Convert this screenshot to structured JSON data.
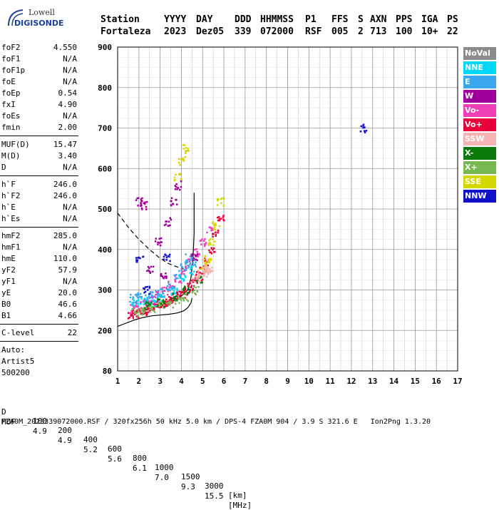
{
  "logo": {
    "company": "Lowell",
    "product": "DIGISONDE"
  },
  "header": {
    "labels": [
      "Station",
      "YYYY",
      "DAY",
      "DDD",
      "HHMMSS",
      "P1",
      "FFS",
      "S",
      "AXN",
      "PPS",
      "IGA",
      "PS"
    ],
    "values": [
      "Fortaleza",
      "2023",
      "Dez05",
      "339",
      "072000",
      "RSF",
      "005",
      "2",
      "713",
      "100",
      "10+",
      "22"
    ]
  },
  "parameters": {
    "group1": [
      {
        "label": "foF2",
        "value": "4.550"
      },
      {
        "label": "foF1",
        "value": "N/A"
      },
      {
        "label": "foF1p",
        "value": "N/A"
      },
      {
        "label": "foE",
        "value": "N/A"
      },
      {
        "label": "foEp",
        "value": "0.54"
      },
      {
        "label": "fxI",
        "value": "4.90"
      },
      {
        "label": "foEs",
        "value": "N/A"
      },
      {
        "label": "fmin",
        "value": "2.00"
      }
    ],
    "group2": [
      {
        "label": "MUF(D)",
        "value": "15.47"
      },
      {
        "label": "M(D)",
        "value": "3.40"
      },
      {
        "label": "D",
        "value": "N/A"
      }
    ],
    "group3": [
      {
        "label": "h`F",
        "value": "246.0"
      },
      {
        "label": "h`F2",
        "value": "246.0"
      },
      {
        "label": "h`E",
        "value": "N/A"
      },
      {
        "label": "h`Es",
        "value": "N/A"
      }
    ],
    "group4": [
      {
        "label": "hmF2",
        "value": "285.0"
      },
      {
        "label": "hmF1",
        "value": "N/A"
      },
      {
        "label": "hmE",
        "value": "110.0"
      },
      {
        "label": "yF2",
        "value": "57.9"
      },
      {
        "label": "yF1",
        "value": "N/A"
      },
      {
        "label": "yE",
        "value": "20.0"
      },
      {
        "label": "B0",
        "value": "46.6"
      },
      {
        "label": "B1",
        "value": "4.66"
      }
    ],
    "group5": [
      {
        "label": "C-level",
        "value": "22"
      }
    ],
    "autoscaling": [
      "Auto:",
      "Artist5",
      "500200"
    ]
  },
  "legend": [
    {
      "label": "NoVal",
      "color": "#8c8c8c"
    },
    {
      "label": "NNE",
      "color": "#00d8f8"
    },
    {
      "label": "E",
      "color": "#3aa6f0"
    },
    {
      "label": "W",
      "color": "#a0009a"
    },
    {
      "label": "Vo-",
      "color": "#f040b8"
    },
    {
      "label": "Vo+",
      "color": "#e8003a"
    },
    {
      "label": "SSW",
      "color": "#f4b4b4"
    },
    {
      "label": "X-",
      "color": "#0a7a0a"
    },
    {
      "label": "X+",
      "color": "#78b850"
    },
    {
      "label": "SSE",
      "color": "#d4d800"
    },
    {
      "label": "NNW",
      "color": "#1010c8"
    }
  ],
  "muf_table": {
    "d_label": "D",
    "d_values": [
      "100",
      "200",
      "400",
      "600",
      "800",
      "1000",
      "1500",
      "3000"
    ],
    "d_unit": "[km]",
    "muf_label": "MUF",
    "muf_values": [
      "4.9",
      "4.9",
      "5.2",
      "5.6",
      "6.1",
      "7.0",
      "9.3",
      "15.5"
    ],
    "muf_unit": "[MHz]"
  },
  "footer": "FZA0M_2023339072000.RSF / 320fx256h 50 kHz 5.0 km / DPS-4 FZA0M 904 / 3.9 S 321.6 E   Ion2Png 1.3.20",
  "chart_data": {
    "type": "scatter",
    "xlabel": "",
    "ylabel": "",
    "xlim": [
      1,
      17
    ],
    "ylim": [
      80,
      900
    ],
    "xticks": [
      1,
      2,
      3,
      4,
      5,
      6,
      7,
      8,
      9,
      10,
      11,
      12,
      13,
      14,
      15,
      16,
      17
    ],
    "yticks": [
      80,
      200,
      300,
      400,
      500,
      600,
      700,
      800,
      900
    ],
    "grid": true,
    "echo_traces": [
      {
        "name": "Vo+",
        "color": "#e8003a",
        "points": [
          [
            1.6,
            240
          ],
          [
            1.8,
            243
          ],
          [
            2.0,
            246
          ],
          [
            2.2,
            250
          ],
          [
            2.4,
            255
          ],
          [
            2.6,
            260
          ],
          [
            2.8,
            264
          ],
          [
            3.0,
            268
          ],
          [
            3.2,
            272
          ],
          [
            3.4,
            276
          ],
          [
            3.6,
            280
          ],
          [
            3.8,
            286
          ],
          [
            4.0,
            292
          ],
          [
            4.2,
            300
          ],
          [
            4.4,
            310
          ],
          [
            4.6,
            322
          ],
          [
            4.8,
            336
          ],
          [
            5.0,
            352
          ],
          [
            5.2,
            372
          ],
          [
            5.4,
            400
          ],
          [
            5.6,
            440
          ],
          [
            5.8,
            480
          ]
        ]
      },
      {
        "name": "Vo-",
        "color": "#f040b8",
        "points": [
          [
            1.7,
            255
          ],
          [
            2.0,
            262
          ],
          [
            2.3,
            270
          ],
          [
            2.6,
            280
          ],
          [
            2.9,
            290
          ],
          [
            3.2,
            300
          ],
          [
            3.5,
            315
          ],
          [
            3.8,
            330
          ],
          [
            4.1,
            350
          ],
          [
            4.4,
            370
          ],
          [
            4.7,
            395
          ],
          [
            5.0,
            420
          ],
          [
            5.3,
            450
          ]
        ]
      },
      {
        "name": "E",
        "color": "#3aa6f0",
        "points": [
          [
            1.7,
            280
          ],
          [
            2.0,
            285
          ],
          [
            2.3,
            282
          ],
          [
            2.6,
            290
          ],
          [
            3.0,
            295
          ],
          [
            3.4,
            310
          ],
          [
            3.8,
            340
          ],
          [
            4.1,
            360
          ],
          [
            4.3,
            380
          ],
          [
            4.5,
            370
          ]
        ]
      },
      {
        "name": "NNE",
        "color": "#00d8f8",
        "points": [
          [
            1.8,
            270
          ],
          [
            2.2,
            275
          ],
          [
            2.6,
            268
          ],
          [
            3.0,
            280
          ],
          [
            3.6,
            300
          ],
          [
            4.0,
            330
          ],
          [
            4.4,
            350
          ]
        ]
      },
      {
        "name": "SSE",
        "color": "#d4d800",
        "points": [
          [
            5.0,
            360
          ],
          [
            5.2,
            380
          ],
          [
            5.4,
            420
          ],
          [
            5.6,
            460
          ],
          [
            5.8,
            520
          ],
          [
            3.8,
            580
          ],
          [
            4.0,
            620
          ],
          [
            4.2,
            650
          ]
        ]
      },
      {
        "name": "X+",
        "color": "#78b850",
        "points": [
          [
            1.8,
            245
          ],
          [
            2.2,
            250
          ],
          [
            2.6,
            258
          ],
          [
            3.0,
            262
          ],
          [
            3.4,
            268
          ],
          [
            3.8,
            276
          ],
          [
            4.2,
            285
          ],
          [
            4.6,
            300
          ]
        ]
      },
      {
        "name": "X-",
        "color": "#0a7a0a",
        "points": [
          [
            2.4,
            262
          ],
          [
            3.0,
            270
          ],
          [
            3.6,
            285
          ],
          [
            4.2,
            300
          ],
          [
            4.8,
            330
          ]
        ]
      },
      {
        "name": "W",
        "color": "#a0009a",
        "points": [
          [
            2.5,
            350
          ],
          [
            2.9,
            420
          ],
          [
            3.3,
            470
          ],
          [
            3.6,
            520
          ],
          [
            3.8,
            560
          ],
          [
            2.0,
            520
          ],
          [
            2.2,
            510
          ],
          [
            3.1,
            340
          ],
          [
            4.6,
            380
          ]
        ]
      },
      {
        "name": "SSW",
        "color": "#f4b4b4",
        "points": [
          [
            5.1,
            345
          ],
          [
            5.2,
            350
          ],
          [
            5.3,
            355
          ],
          [
            4.7,
            330
          ],
          [
            4.9,
            340
          ]
        ]
      },
      {
        "name": "NNW",
        "color": "#1010c8",
        "points": [
          [
            2.0,
            380
          ],
          [
            2.3,
            300
          ],
          [
            3.3,
            380
          ],
          [
            12.5,
            700
          ]
        ]
      }
    ],
    "profile_solid": [
      [
        1.65,
        240
      ],
      [
        2.0,
        245
      ],
      [
        2.4,
        252
      ],
      [
        2.8,
        258
      ],
      [
        3.2,
        265
      ],
      [
        3.6,
        273
      ],
      [
        4.0,
        285
      ],
      [
        4.3,
        300
      ],
      [
        4.45,
        330
      ],
      [
        4.55,
        380
      ],
      [
        4.6,
        440
      ],
      [
        4.6,
        540
      ]
    ],
    "profile_dashed_top": [
      [
        1.0,
        490
      ],
      [
        1.5,
        455
      ],
      [
        2.0,
        425
      ],
      [
        2.5,
        400
      ],
      [
        3.0,
        378
      ],
      [
        3.4,
        365
      ],
      [
        3.8,
        357
      ],
      [
        4.1,
        352
      ]
    ],
    "profile_dashed_bottom": [
      [
        1.0,
        210
      ],
      [
        1.4,
        218
      ],
      [
        1.8,
        226
      ],
      [
        2.2,
        232
      ],
      [
        2.6,
        236
      ],
      [
        3.0,
        238
      ],
      [
        3.4,
        240
      ],
      [
        3.8,
        243
      ],
      [
        4.1,
        248
      ],
      [
        4.3,
        256
      ],
      [
        4.45,
        268
      ],
      [
        4.5,
        280
      ]
    ]
  }
}
